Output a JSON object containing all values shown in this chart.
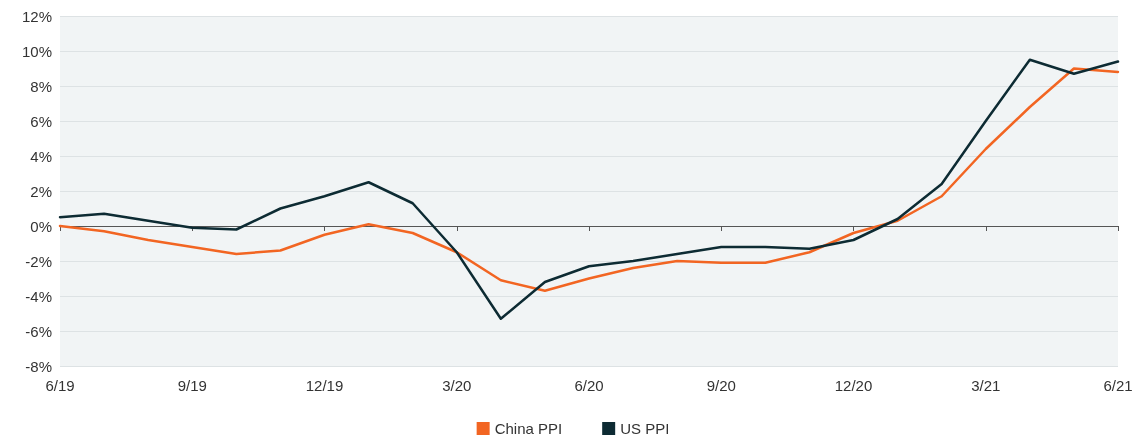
{
  "chart_data": {
    "type": "line",
    "categories": [
      "6/19",
      null,
      null,
      "9/19",
      null,
      null,
      "12/19",
      null,
      null,
      "3/20",
      null,
      null,
      "6/20",
      null,
      null,
      "9/20",
      null,
      null,
      "12/20",
      null,
      null,
      "3/21",
      null,
      null,
      "6/21"
    ],
    "series": [
      {
        "name": "China PPI",
        "color": "#f26522",
        "values": [
          0,
          -0.3,
          -0.8,
          -1.2,
          -1.6,
          -1.4,
          -0.5,
          0.1,
          -0.4,
          -1.5,
          -3.1,
          -3.7,
          -3.0,
          -2.4,
          -2.0,
          -2.1,
          -2.1,
          -1.5,
          -0.4,
          0.3,
          1.7,
          4.4,
          6.8,
          9.0,
          8.8
        ]
      },
      {
        "name": "US PPI",
        "color": "#0d2b33",
        "values": [
          0.5,
          0.7,
          0.3,
          -0.1,
          -0.2,
          1.0,
          1.7,
          2.5,
          1.3,
          -1.5,
          -5.3,
          -3.2,
          -2.3,
          -2.0,
          -1.6,
          -1.2,
          -1.2,
          -1.3,
          -0.8,
          0.4,
          2.4,
          6.0,
          9.5,
          8.7,
          9.4
        ]
      }
    ],
    "ylim": [
      -8,
      12
    ],
    "yticks": [
      {
        "value": -8,
        "label": "-8%"
      },
      {
        "value": -6,
        "label": "-6%"
      },
      {
        "value": -4,
        "label": "-4%"
      },
      {
        "value": -2,
        "label": "-2%"
      },
      {
        "value": 0,
        "label": "0%"
      },
      {
        "value": 2,
        "label": "2%"
      },
      {
        "value": 4,
        "label": "4%"
      },
      {
        "value": 6,
        "label": "6%"
      },
      {
        "value": 8,
        "label": "8%"
      },
      {
        "value": 10,
        "label": "10%"
      },
      {
        "value": 12,
        "label": "12%"
      }
    ],
    "grid": "y",
    "legend": "bottom",
    "marker": "none",
    "line_style": "solid"
  }
}
